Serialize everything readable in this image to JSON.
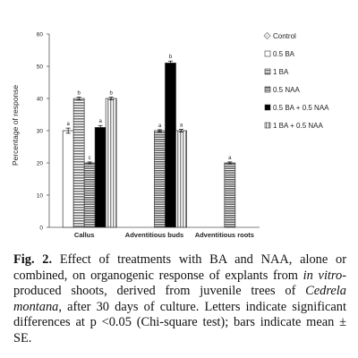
{
  "chart_data": {
    "type": "bar",
    "ylabel": "Percentage of response",
    "ylim": [
      0,
      60
    ],
    "yticks": [
      0,
      10,
      20,
      30,
      40,
      50,
      60
    ],
    "grid": false,
    "legend_position": "top-right",
    "categories": [
      "Callus",
      "Adventitious buds",
      "Adventitious roots"
    ],
    "series": [
      {
        "name": "Control",
        "pattern": "dotted",
        "values": [
          null,
          null,
          null
        ],
        "letters": [
          null,
          null,
          null
        ]
      },
      {
        "name": "0.5 BA",
        "pattern": "white",
        "values": [
          30,
          null,
          null
        ],
        "errors": [
          0.8,
          null,
          null
        ],
        "letters": [
          "a",
          null,
          null
        ]
      },
      {
        "name": "1 BA",
        "pattern": "horizontal-lines",
        "values": [
          40,
          null,
          null
        ],
        "errors": [
          0.4,
          null,
          null
        ],
        "letters": [
          "b",
          null,
          null
        ]
      },
      {
        "name": "0.5 NAA",
        "pattern": "wide-horizontal-lines",
        "values": [
          20,
          30,
          20
        ],
        "errors": [
          0.3,
          0.3,
          0.3
        ],
        "letters": [
          "c",
          "a",
          "a"
        ]
      },
      {
        "name": "0.5 BA + 0.5 NAA",
        "pattern": "black",
        "values": [
          31,
          51,
          null
        ],
        "errors": [
          0.6,
          0.6,
          null
        ],
        "letters": [
          "a",
          "b",
          null
        ]
      },
      {
        "name": "1 BA + 0.5 NAA",
        "pattern": "vertical-lines",
        "values": [
          40,
          30,
          null
        ],
        "errors": [
          0.4,
          0.4,
          null
        ],
        "letters": [
          "b",
          "a",
          null
        ]
      }
    ]
  },
  "caption": {
    "label": "Fig. 2.",
    "text_1": " Effect of treatments with BA and NAA, alone or combined, on organogenic response of explants from ",
    "italic_1": "in vitro",
    "text_2": "-produced shoots, derived from juvenile trees of ",
    "italic_2": "Cedrela montana",
    "text_3": ", after 30 days of culture. Letters indicate significant differences at p <0.05 (Chi-square test); bars indicate mean ± SE."
  }
}
